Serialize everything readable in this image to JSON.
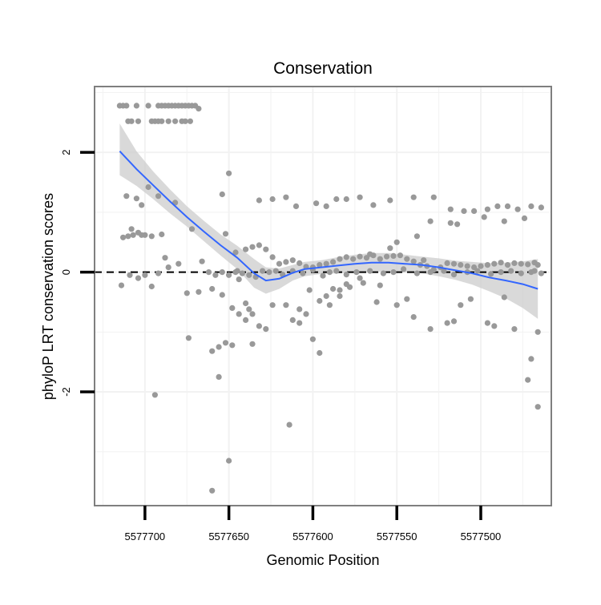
{
  "chart_data": {
    "type": "scatter",
    "title": "Conservation",
    "xlabel": "Genomic Position",
    "ylabel": "phyloP LRT conservation scores",
    "xlim": [
      5577730,
      5577458
    ],
    "ylim": [
      -3.9,
      3.1
    ],
    "x_ticks": [
      {
        "value": 5577700,
        "label": "5577700"
      },
      {
        "value": 5577650,
        "label": "5577650"
      },
      {
        "value": 5577600,
        "label": "5577600"
      },
      {
        "value": 5577550,
        "label": "5577550"
      },
      {
        "value": 5577500,
        "label": "5577500"
      }
    ],
    "y_ticks": [
      {
        "value": 2,
        "label": "2"
      },
      {
        "value": 0,
        "label": "0"
      },
      {
        "value": -2,
        "label": "-2"
      }
    ],
    "reference_line": {
      "y": 0,
      "style": "dashed"
    },
    "colors": {
      "points": "#999999",
      "smooth": "#3366ff",
      "band": "#cccccc",
      "frame": "#7f7f7f"
    },
    "points": {
      "x": [
        5577715,
        5577713,
        5577711,
        5577705,
        5577698,
        5577692,
        5577690,
        5577688,
        5577686,
        5577684,
        5577682,
        5577680,
        5577678,
        5577676,
        5577674,
        5577672,
        5577670,
        5577668,
        5577710,
        5577708,
        5577704,
        5577696,
        5577694,
        5577692,
        5577690,
        5577686,
        5577682,
        5577678,
        5577676,
        5577673,
        5577711,
        5577705,
        5577702,
        5577698,
        5577692,
        5577682,
        5577672,
        5577654,
        5577650,
        5577708,
        5577704,
        5577710,
        5577700,
        5577690,
        5577713,
        5577707,
        5577702,
        5577696,
        5577688,
        5577680,
        5577666,
        5577652,
        5577646,
        5577714,
        5577709,
        5577704,
        5577700,
        5577696,
        5577692,
        5577686,
        5577675,
        5577668,
        5577660,
        5577654,
        5577645,
        5577640,
        5577636,
        5577632,
        5577628,
        5577624,
        5577620,
        5577616,
        5577612,
        5577608,
        5577604,
        5577600,
        5577596,
        5577592,
        5577588,
        5577584,
        5577580,
        5577576,
        5577572,
        5577568,
        5577564,
        5577560,
        5577556,
        5577552,
        5577548,
        5577544,
        5577540,
        5577536,
        5577532,
        5577528,
        5577524,
        5577520,
        5577516,
        5577512,
        5577508,
        5577504,
        5577500,
        5577496,
        5577492,
        5577488,
        5577484,
        5577480,
        5577476,
        5577472,
        5577468,
        5577466,
        5577648,
        5577644,
        5577640,
        5577636,
        5577632,
        5577628,
        5577624,
        5577616,
        5577612,
        5577608,
        5577604,
        5577600,
        5577596,
        5577592,
        5577588,
        5577584,
        5577580,
        5577570,
        5577560,
        5577550,
        5577544,
        5577540,
        5577530,
        5577520,
        5577516,
        5577512,
        5577506,
        5577496,
        5577492,
        5577486,
        5577480,
        5577470,
        5577466,
        5577662,
        5577658,
        5577654,
        5577650,
        5577646,
        5577642,
        5577638,
        5577634,
        5577630,
        5577626,
        5577622,
        5577618,
        5577612,
        5577606,
        5577600,
        5577594,
        5577590,
        5577586,
        5577580,
        5577574,
        5577566,
        5577558,
        5577552,
        5577546,
        5577538,
        5577530,
        5577522,
        5577516,
        5577508,
        5577502,
        5577494,
        5577488,
        5577482,
        5577476,
        5577470,
        5577468,
        5577464,
        5577640,
        5577638,
        5577636,
        5577644,
        5577660,
        5577656,
        5577652,
        5577648,
        5577632,
        5577624,
        5577616,
        5577610,
        5577598,
        5577592,
        5577586,
        5577580,
        5577572,
        5577564,
        5577554,
        5577540,
        5577528,
        5577518,
        5577510,
        5577504,
        5577496,
        5577490,
        5577484,
        5577478,
        5577470,
        5577464,
        5577650,
        5577660,
        5577614,
        5577694,
        5577656,
        5577674,
        5577596,
        5577590,
        5577584,
        5577578,
        5577572,
        5577566,
        5577554,
        5577550,
        5577538,
        5577534,
        5577530,
        5577518,
        5577514,
        5577498,
        5577486,
        5577474,
        5577472,
        5577466,
        5577608,
        5577602,
        5577562
      ],
      "y": [
        2.78,
        2.78,
        2.78,
        2.78,
        2.78,
        2.78,
        2.78,
        2.78,
        2.78,
        2.78,
        2.78,
        2.78,
        2.78,
        2.78,
        2.78,
        2.78,
        2.78,
        2.73,
        2.52,
        2.52,
        2.52,
        2.52,
        2.52,
        2.52,
        2.52,
        2.52,
        2.52,
        2.52,
        2.52,
        2.52,
        1.27,
        1.23,
        1.12,
        1.42,
        1.27,
        1.16,
        0.72,
        1.3,
        1.65,
        0.72,
        0.66,
        0.6,
        0.62,
        0.63,
        0.58,
        0.62,
        0.62,
        0.6,
        0.24,
        0.14,
        0.18,
        0.64,
        0.33,
        -0.22,
        -0.05,
        -0.1,
        -0.05,
        -0.24,
        -0.02,
        0.08,
        -0.35,
        -0.33,
        -0.28,
        -0.38,
        0.02,
        0.38,
        0.42,
        0.45,
        0.38,
        0.25,
        0.14,
        0.17,
        0.2,
        0.15,
        0.09,
        0.08,
        0.12,
        0.14,
        0.17,
        0.22,
        0.25,
        0.22,
        0.26,
        0.24,
        0.28,
        0.22,
        0.26,
        0.27,
        0.28,
        0.22,
        0.18,
        0.12,
        0.1,
        0.04,
        0.08,
        0.15,
        0.14,
        0.12,
        0.1,
        0.08,
        0.1,
        0.12,
        0.14,
        0.16,
        0.12,
        0.15,
        0.14,
        0.13,
        0.16,
        0.12,
        -0.6,
        -0.7,
        -0.8,
        -1.2,
        -0.9,
        -0.95,
        -0.55,
        -0.55,
        -0.8,
        -0.62,
        -0.7,
        -1.12,
        -0.48,
        -0.4,
        -0.28,
        -0.3,
        -0.2,
        -0.18,
        -0.22,
        -0.55,
        -0.45,
        -0.75,
        -0.95,
        -0.85,
        -0.82,
        -0.55,
        -0.45,
        -0.85,
        -0.9,
        -0.42,
        -0.95,
        -1.45,
        -2.25,
        0.0,
        -0.05,
        0.0,
        -0.05,
        0.0,
        -0.02,
        -0.05,
        -0.08,
        0.02,
        0.0,
        0.02,
        -0.04,
        0.02,
        -0.02,
        0.04,
        -0.06,
        0.0,
        0.02,
        -0.04,
        0.0,
        0.02,
        -0.02,
        0.0,
        0.05,
        -0.02,
        0.0,
        0.02,
        -0.04,
        0.0,
        0.02,
        -0.03,
        0.0,
        0.02,
        -0.02,
        0.0,
        0.02,
        -0.02,
        -0.52,
        -0.62,
        -0.7,
        -0.12,
        -1.32,
        -1.25,
        -1.18,
        -1.22,
        1.2,
        1.22,
        1.25,
        1.1,
        1.15,
        1.1,
        1.22,
        1.22,
        1.25,
        1.12,
        1.2,
        1.25,
        1.25,
        1.05,
        1.02,
        1.02,
        1.05,
        1.1,
        1.1,
        1.05,
        1.1,
        1.08,
        -3.15,
        -3.65,
        -2.55,
        -2.05,
        -1.75,
        -1.1,
        -1.35,
        -0.55,
        -0.4,
        -0.25,
        -0.1,
        0.3,
        0.4,
        0.5,
        0.6,
        0.2,
        0.85,
        0.82,
        0.8,
        0.92,
        0.85,
        0.9,
        -1.8,
        -1.0,
        -0.85,
        -0.3,
        -0.5
      ],
      "radius": 3.6
    },
    "smooth": {
      "x": [
        5577715,
        5577705,
        5577695,
        5577685,
        5577675,
        5577665,
        5577655,
        5577645,
        5577635,
        5577628,
        5577620,
        5577612,
        5577605,
        5577595,
        5577585,
        5577575,
        5577565,
        5577555,
        5577545,
        5577535,
        5577525,
        5577515,
        5577505,
        5577495,
        5577485,
        5577475,
        5577466
      ],
      "y": [
        2.02,
        1.72,
        1.45,
        1.18,
        0.92,
        0.68,
        0.45,
        0.24,
        -0.02,
        -0.14,
        -0.11,
        -0.01,
        0.05,
        0.08,
        0.11,
        0.14,
        0.16,
        0.16,
        0.14,
        0.12,
        0.08,
        0.03,
        -0.02,
        -0.09,
        -0.14,
        -0.2,
        -0.28
      ],
      "lower": [
        1.62,
        1.44,
        1.22,
        0.98,
        0.76,
        0.52,
        0.28,
        0.05,
        -0.26,
        -0.36,
        -0.28,
        -0.14,
        -0.07,
        -0.03,
        -0.02,
        0.0,
        0.01,
        0.01,
        0.0,
        -0.02,
        -0.07,
        -0.13,
        -0.21,
        -0.32,
        -0.44,
        -0.6,
        -0.78
      ],
      "upper": [
        2.48,
        2.02,
        1.68,
        1.38,
        1.1,
        0.86,
        0.63,
        0.44,
        0.22,
        0.08,
        0.06,
        0.12,
        0.17,
        0.2,
        0.25,
        0.29,
        0.32,
        0.32,
        0.29,
        0.26,
        0.23,
        0.19,
        0.17,
        0.15,
        0.16,
        0.18,
        0.22
      ]
    }
  }
}
